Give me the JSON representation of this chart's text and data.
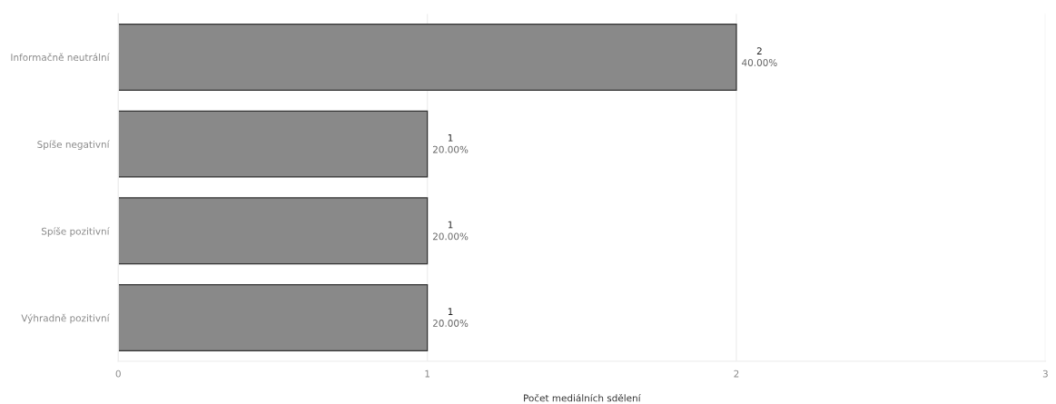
{
  "chart_data": {
    "type": "bar",
    "orientation": "horizontal",
    "categories": [
      "Informačně neutrální",
      "Spíše negativní",
      "Spíše pozitivní",
      "Výhradně pozitivní"
    ],
    "values": [
      2,
      1,
      1,
      1
    ],
    "color": "#898989",
    "value_labels": [
      "2\n40.00%",
      "1\n20.00%",
      "1\n20.00%",
      "1\n20.00%"
    ],
    "xlabel": "Počet mediálních sdělení",
    "xlim": [
      0,
      3
    ],
    "xticks": [
      0,
      1,
      2,
      3
    ],
    "grid": "x"
  }
}
